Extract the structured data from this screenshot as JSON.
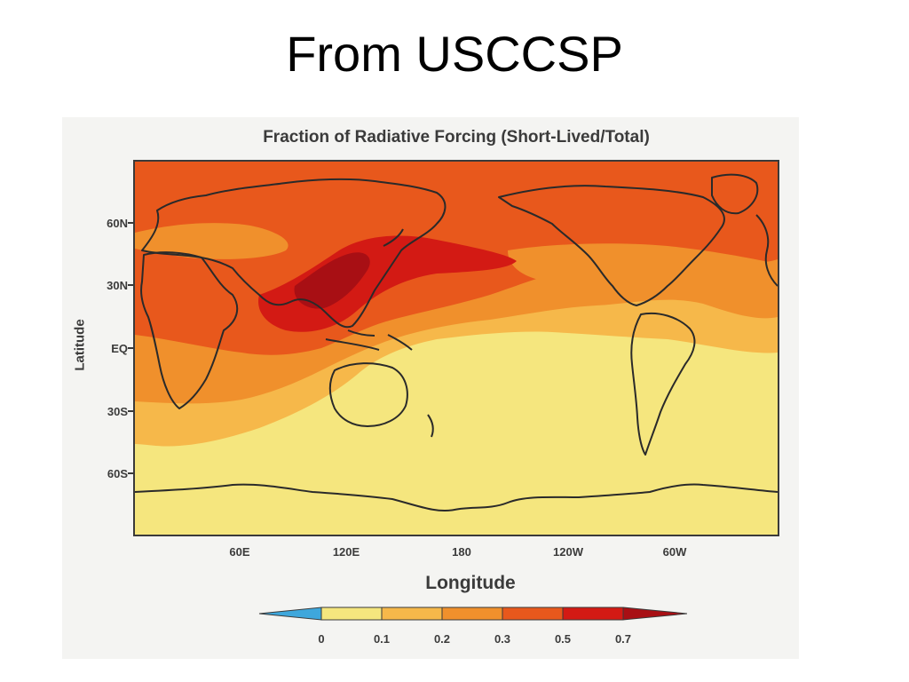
{
  "slide": {
    "title": "From USCCSP"
  },
  "figure": {
    "title": "Fraction of Radiative Forcing (Short-Lived/Total)",
    "ylabel": "Latitude",
    "xlabel": "Longitude",
    "lat_ticks": [
      "60N",
      "30N",
      "EQ",
      "30S",
      "60S"
    ],
    "lon_ticks": [
      "60E",
      "120E",
      "180",
      "120W",
      "60W"
    ]
  },
  "colorbar": {
    "labels": [
      "0",
      "0.1",
      "0.2",
      "0.3",
      "0.5",
      "0.7"
    ],
    "colors": [
      "#f5e67e",
      "#f6b84a",
      "#f0902c",
      "#e8581c",
      "#d31a14",
      "#a80f14"
    ],
    "under_color": "#3ea7dc"
  }
}
